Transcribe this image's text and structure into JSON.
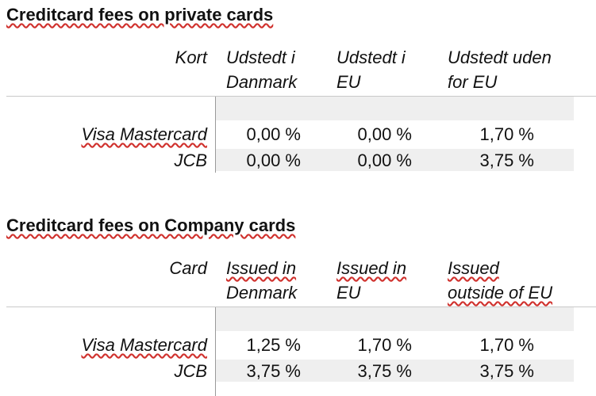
{
  "private": {
    "title": "Creditcard fees on private cards",
    "col_header": "Kort",
    "columns": [
      {
        "line1": "Udstedt i",
        "line2": "Danmark"
      },
      {
        "line1": "Udstedt i",
        "line2": "EU"
      },
      {
        "line1": "Udstedt uden",
        "line2": "for EU"
      }
    ],
    "rows": [
      {
        "label": "Visa Mastercard",
        "values": [
          "0,00 %",
          "0,00 %",
          "1,70 %"
        ]
      },
      {
        "label": "JCB",
        "values": [
          "0,00 %",
          "0,00 %",
          "3,75 %"
        ]
      }
    ]
  },
  "company": {
    "title": "Creditcard fees on Company cards",
    "col_header": "Card",
    "columns": [
      {
        "line1": "Issued in",
        "line2": "Denmark"
      },
      {
        "line1": "Issued in",
        "line2": "EU"
      },
      {
        "line1": "Issued",
        "line2": "outside of EU"
      }
    ],
    "rows": [
      {
        "label": "Visa Mastercard",
        "values": [
          "1,25 %",
          "1,70 %",
          "1,70 %"
        ]
      },
      {
        "label": "JCB",
        "values": [
          "3,75 %",
          "3,75 %",
          "3,75 %"
        ]
      }
    ]
  },
  "colors": {
    "shade": "#efefef",
    "spellcheck_underline": "#d0312d"
  }
}
